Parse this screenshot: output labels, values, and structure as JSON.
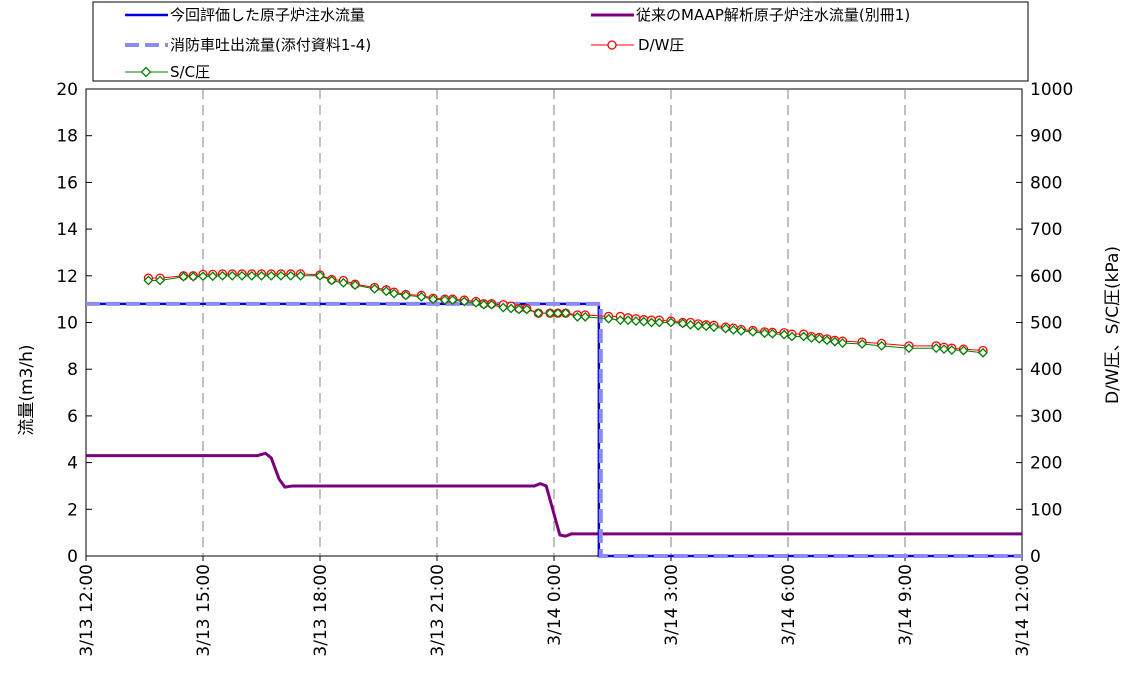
{
  "chart_data": {
    "type": "line",
    "xlabel": "",
    "ylabel": "流量(m3/h)",
    "ylabel_right": "D/W圧、S/C圧(kPa)",
    "x_tick_labels": [
      "3/13 12:00",
      "3/13 15:00",
      "3/13 18:00",
      "3/13 21:00",
      "3/14 0:00",
      "3/14 3:00",
      "3/14 6:00",
      "3/14 9:00",
      "3/14 12:00"
    ],
    "x_unit": "hours since 3/13 12:00",
    "xlim": [
      0,
      24
    ],
    "ylim": [
      0,
      20
    ],
    "ylim_right": [
      0,
      1000
    ],
    "y_ticks": [
      0,
      2,
      4,
      6,
      8,
      10,
      12,
      14,
      16,
      18,
      20
    ],
    "y_ticks_right": [
      0,
      100,
      200,
      300,
      400,
      500,
      600,
      700,
      800,
      900,
      1000
    ],
    "grid": "vertical dashed",
    "legend": {
      "placement": "top",
      "entries": [
        "今回評価した原子炉注水流量",
        "従来のMAAP解析原子炉注水流量(別冊1)",
        "消防車吐出流量(添付資料1-4)",
        "D/W圧",
        "S/C圧"
      ]
    },
    "colors": {
      "eval_flow": "#0000dd",
      "maap_flow": "#7b0080",
      "fire_truck": "#8c8cf0",
      "dw": "#ff0000",
      "sc": "#008000"
    },
    "series": [
      {
        "name": "今回評価した原子炉注水流量",
        "axis": "left",
        "style": "solid",
        "points": [
          [
            0,
            10.8
          ],
          [
            13.15,
            10.8
          ],
          [
            13.15,
            0
          ],
          [
            24,
            0
          ]
        ]
      },
      {
        "name": "従来のMAAP解析原子炉注水流量(別冊1)",
        "axis": "left",
        "style": "solid",
        "points": [
          [
            0,
            4.3
          ],
          [
            4.4,
            4.3
          ],
          [
            4.6,
            4.4
          ],
          [
            4.75,
            4.2
          ],
          [
            4.95,
            3.3
          ],
          [
            5.1,
            2.95
          ],
          [
            5.3,
            3.0
          ],
          [
            11.5,
            3.0
          ],
          [
            11.65,
            3.1
          ],
          [
            11.8,
            3.0
          ],
          [
            12.0,
            1.8
          ],
          [
            12.15,
            0.9
          ],
          [
            12.3,
            0.85
          ],
          [
            12.45,
            0.95
          ],
          [
            24,
            0.95
          ]
        ]
      },
      {
        "name": "消防車吐出流量(添付資料1-4)",
        "axis": "left",
        "style": "dashed",
        "points": [
          [
            0,
            10.8
          ],
          [
            13.2,
            10.8
          ],
          [
            13.2,
            0
          ],
          [
            24,
            0
          ]
        ]
      },
      {
        "name": "D/W圧",
        "axis": "right",
        "marker": "circle",
        "points": [
          [
            1.6,
            595
          ],
          [
            1.9,
            595
          ],
          [
            2.5,
            600
          ],
          [
            2.75,
            600
          ],
          [
            3.0,
            603
          ],
          [
            3.25,
            603
          ],
          [
            3.5,
            604
          ],
          [
            3.75,
            604
          ],
          [
            4.0,
            604
          ],
          [
            4.25,
            604
          ],
          [
            4.5,
            604
          ],
          [
            4.75,
            604
          ],
          [
            5.0,
            604
          ],
          [
            5.25,
            604
          ],
          [
            5.5,
            604
          ],
          [
            6.0,
            602
          ],
          [
            6.3,
            592
          ],
          [
            6.6,
            590
          ],
          [
            6.9,
            582
          ],
          [
            7.4,
            575
          ],
          [
            7.7,
            570
          ],
          [
            7.9,
            565
          ],
          [
            8.2,
            560
          ],
          [
            8.6,
            558
          ],
          [
            8.9,
            552
          ],
          [
            9.2,
            550
          ],
          [
            9.4,
            550
          ],
          [
            9.7,
            548
          ],
          [
            10.0,
            545
          ],
          [
            10.2,
            540
          ],
          [
            10.4,
            540
          ],
          [
            10.7,
            538
          ],
          [
            10.9,
            535
          ],
          [
            11.1,
            530
          ],
          [
            11.3,
            530
          ],
          [
            11.6,
            520
          ],
          [
            11.9,
            520
          ],
          [
            12.1,
            520
          ],
          [
            12.3,
            520
          ],
          [
            12.6,
            516
          ],
          [
            12.8,
            516
          ],
          [
            13.4,
            513
          ],
          [
            13.7,
            513
          ],
          [
            13.9,
            510
          ],
          [
            14.1,
            508
          ],
          [
            14.3,
            506
          ],
          [
            14.5,
            505
          ],
          [
            14.7,
            505
          ],
          [
            15.0,
            503
          ],
          [
            15.3,
            500
          ],
          [
            15.5,
            500
          ],
          [
            15.7,
            497
          ],
          [
            15.9,
            495
          ],
          [
            16.1,
            494
          ],
          [
            16.4,
            490
          ],
          [
            16.6,
            488
          ],
          [
            16.8,
            485
          ],
          [
            17.1,
            483
          ],
          [
            17.4,
            480
          ],
          [
            17.6,
            479
          ],
          [
            17.9,
            478
          ],
          [
            18.1,
            475
          ],
          [
            18.4,
            475
          ],
          [
            18.6,
            470
          ],
          [
            18.8,
            468
          ],
          [
            19.0,
            465
          ],
          [
            19.2,
            462
          ],
          [
            19.4,
            460
          ],
          [
            19.9,
            458
          ],
          [
            20.4,
            455
          ],
          [
            21.1,
            450
          ],
          [
            21.8,
            450
          ],
          [
            22.0,
            447
          ],
          [
            22.2,
            445
          ],
          [
            22.5,
            443
          ],
          [
            23.0,
            440
          ]
        ]
      },
      {
        "name": "S/C圧",
        "axis": "right",
        "marker": "diamond",
        "points": [
          [
            1.6,
            590
          ],
          [
            1.9,
            590
          ],
          [
            2.5,
            598
          ],
          [
            2.75,
            598
          ],
          [
            3.0,
            599
          ],
          [
            3.25,
            599
          ],
          [
            3.5,
            600
          ],
          [
            3.75,
            600
          ],
          [
            4.0,
            600
          ],
          [
            4.25,
            600
          ],
          [
            4.5,
            600
          ],
          [
            4.75,
            600
          ],
          [
            5.0,
            600
          ],
          [
            5.25,
            600
          ],
          [
            5.5,
            600
          ],
          [
            6.0,
            600
          ],
          [
            6.3,
            590
          ],
          [
            6.6,
            585
          ],
          [
            6.9,
            580
          ],
          [
            7.4,
            572
          ],
          [
            7.7,
            567
          ],
          [
            7.9,
            562
          ],
          [
            8.2,
            558
          ],
          [
            8.6,
            555
          ],
          [
            8.9,
            550
          ],
          [
            9.2,
            548
          ],
          [
            9.4,
            548
          ],
          [
            9.7,
            545
          ],
          [
            10.0,
            542
          ],
          [
            10.2,
            538
          ],
          [
            10.4,
            538
          ],
          [
            10.7,
            532
          ],
          [
            10.9,
            530
          ],
          [
            11.1,
            528
          ],
          [
            11.3,
            528
          ],
          [
            11.6,
            520
          ],
          [
            11.9,
            520
          ],
          [
            12.1,
            520
          ],
          [
            12.3,
            520
          ],
          [
            12.6,
            512
          ],
          [
            12.8,
            512
          ],
          [
            13.4,
            508
          ],
          [
            13.7,
            505
          ],
          [
            13.9,
            505
          ],
          [
            14.1,
            503
          ],
          [
            14.3,
            502
          ],
          [
            14.5,
            500
          ],
          [
            14.7,
            500
          ],
          [
            15.0,
            500
          ],
          [
            15.3,
            498
          ],
          [
            15.5,
            495
          ],
          [
            15.7,
            493
          ],
          [
            15.9,
            492
          ],
          [
            16.1,
            490
          ],
          [
            16.4,
            487
          ],
          [
            16.6,
            484
          ],
          [
            16.8,
            482
          ],
          [
            17.1,
            480
          ],
          [
            17.4,
            477
          ],
          [
            17.6,
            476
          ],
          [
            17.9,
            474
          ],
          [
            18.1,
            470
          ],
          [
            18.4,
            470
          ],
          [
            18.6,
            467
          ],
          [
            18.8,
            465
          ],
          [
            19.0,
            462
          ],
          [
            19.2,
            459
          ],
          [
            19.4,
            456
          ],
          [
            19.9,
            454
          ],
          [
            20.4,
            450
          ],
          [
            21.1,
            445
          ],
          [
            21.8,
            445
          ],
          [
            22.0,
            443
          ],
          [
            22.2,
            441
          ],
          [
            22.5,
            440
          ],
          [
            23.0,
            435
          ]
        ]
      }
    ]
  }
}
